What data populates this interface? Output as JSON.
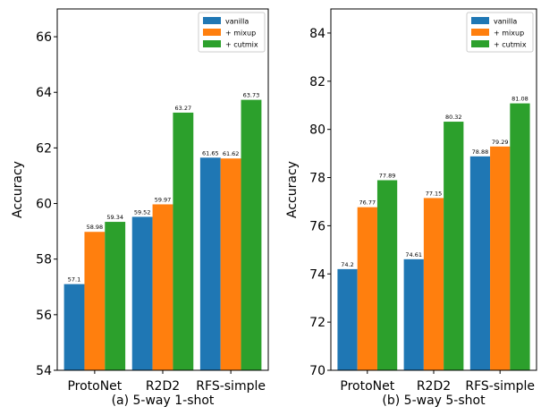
{
  "chart_data": [
    {
      "type": "bar",
      "title": "",
      "caption": "(a) 5-way 1-shot",
      "xlabel": "",
      "ylabel": "Accuracy",
      "ylim": [
        54,
        67
      ],
      "yticks": [
        54,
        56,
        58,
        60,
        62,
        64,
        66
      ],
      "categories": [
        "ProtoNet",
        "R2D2",
        "RFS-simple"
      ],
      "series": [
        {
          "name": "vanilla",
          "color": "#1f77b4",
          "values": [
            57.1,
            59.52,
            61.65
          ],
          "labels": [
            "57.1",
            "59.52",
            "61.65"
          ]
        },
        {
          "name": "+ mixup",
          "color": "#ff7f0e",
          "values": [
            58.98,
            59.97,
            61.62
          ],
          "labels": [
            "58.98",
            "59.97",
            "61.62"
          ]
        },
        {
          "name": "+ cutmix",
          "color": "#2ca02c",
          "values": [
            59.34,
            63.27,
            63.73
          ],
          "labels": [
            "59.34",
            "63.27",
            "63.73"
          ]
        }
      ],
      "legend": "top-right",
      "grid": false
    },
    {
      "type": "bar",
      "title": "",
      "caption": "(b) 5-way 5-shot",
      "xlabel": "",
      "ylabel": "Accuracy",
      "ylim": [
        70,
        85
      ],
      "yticks": [
        70,
        72,
        74,
        76,
        78,
        80,
        82,
        84
      ],
      "categories": [
        "ProtoNet",
        "R2D2",
        "RFS-simple"
      ],
      "series": [
        {
          "name": "vanilla",
          "color": "#1f77b4",
          "values": [
            74.2,
            74.61,
            78.88
          ],
          "labels": [
            "74.2",
            "74.61",
            "78.88"
          ]
        },
        {
          "name": "+ mixup",
          "color": "#ff7f0e",
          "values": [
            76.77,
            77.15,
            79.29
          ],
          "labels": [
            "76.77",
            "77.15",
            "79.29"
          ]
        },
        {
          "name": "+ cutmix",
          "color": "#2ca02c",
          "values": [
            77.89,
            80.32,
            81.08
          ],
          "labels": [
            "77.89",
            "80.32",
            "81.08"
          ]
        }
      ],
      "legend": "top-right",
      "grid": false
    }
  ]
}
